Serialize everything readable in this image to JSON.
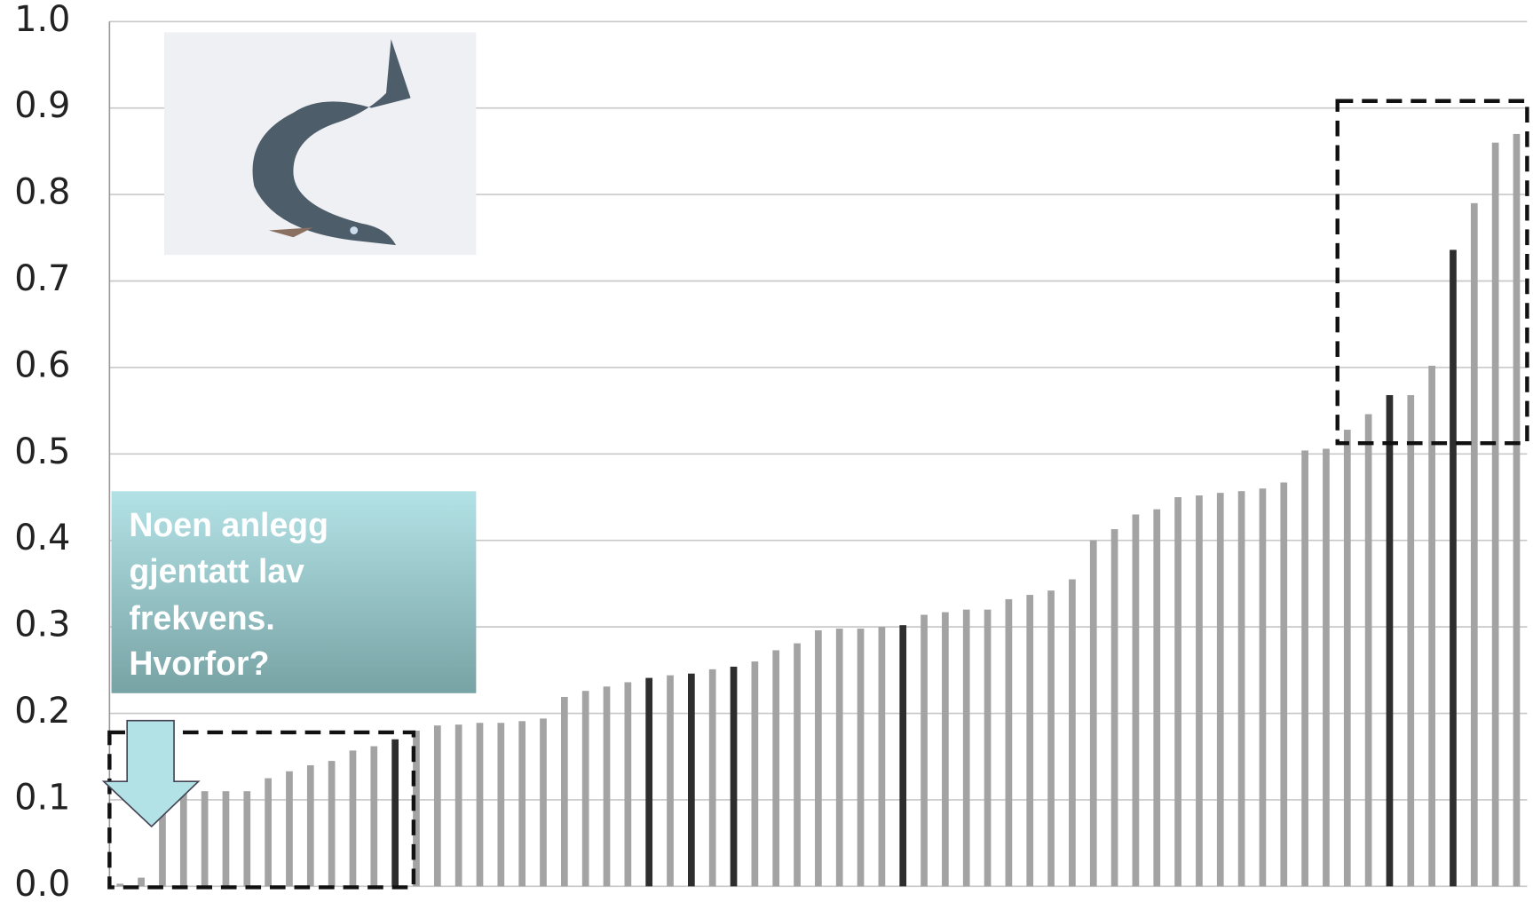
{
  "chart_data": {
    "type": "bar",
    "values": [
      0.003,
      0.01,
      0.1,
      0.11,
      0.11,
      0.11,
      0.11,
      0.125,
      0.133,
      0.14,
      0.145,
      0.157,
      0.162,
      0.17,
      0.18,
      0.186,
      0.187,
      0.189,
      0.189,
      0.191,
      0.194,
      0.219,
      0.226,
      0.231,
      0.236,
      0.241,
      0.244,
      0.246,
      0.251,
      0.254,
      0.26,
      0.273,
      0.281,
      0.296,
      0.298,
      0.298,
      0.3,
      0.302,
      0.314,
      0.317,
      0.32,
      0.32,
      0.332,
      0.337,
      0.342,
      0.355,
      0.4,
      0.413,
      0.43,
      0.436,
      0.45,
      0.452,
      0.455,
      0.457,
      0.46,
      0.467,
      0.504,
      0.506,
      0.528,
      0.546,
      0.568,
      0.568,
      0.602,
      0.736,
      0.79,
      0.86,
      0.87
    ],
    "color": "#a3a3a3",
    "highlight_color": "#2e2e2e",
    "highlighted": [
      13,
      25,
      27,
      29,
      37,
      60,
      63
    ],
    "ylim": [
      0,
      1
    ],
    "yticks": [
      {
        "value": 0,
        "label": "0.0"
      },
      0.1,
      0.2,
      0.3,
      0.4,
      0.5,
      0.6,
      0.7,
      0.8,
      0.9,
      {
        "value": 1,
        "label": "1.0"
      }
    ],
    "grid": true,
    "annotation": [
      "Noen anlegg",
      "gjentatt lav",
      "frekvens.",
      "Hvorfor?"
    ]
  }
}
